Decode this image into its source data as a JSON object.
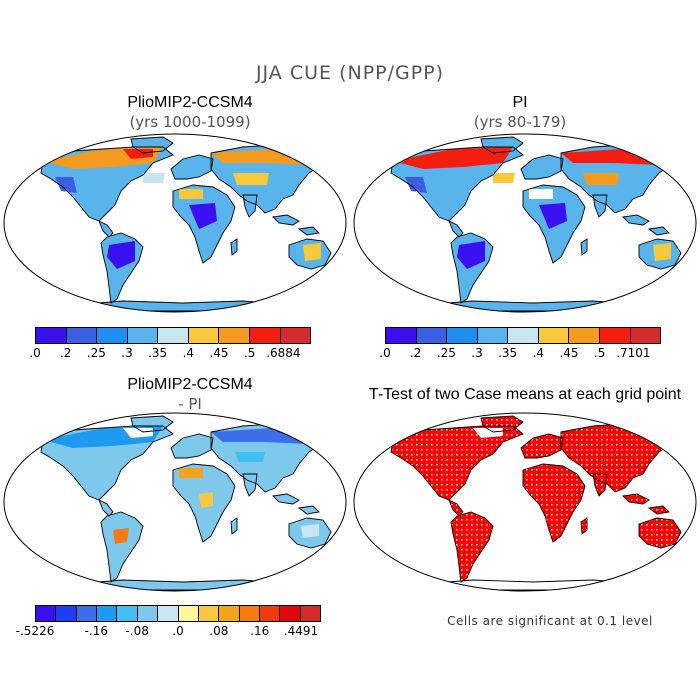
{
  "figure": {
    "title": "JJA CUE (NPP/GPP)"
  },
  "panels": [
    {
      "id": "plio",
      "title": "PlioMIP2-CCSM4",
      "subtitle": "(yrs 1000-1099)"
    },
    {
      "id": "pi",
      "title": "PI",
      "subtitle": "(yrs 80-179)"
    },
    {
      "id": "diff",
      "title": "PlioMIP2-CCSM4",
      "subtitle": "- PI"
    },
    {
      "id": "ttest",
      "title": "T-Test of two Case means at each grid point",
      "subtitle": ""
    }
  ],
  "colorbars": {
    "plio": {
      "colors": [
        "#3a10f0",
        "#3b5fe0",
        "#1e8ff0",
        "#5ab4ec",
        "#c8e6f2",
        "#f5c93a",
        "#f39b1e",
        "#f41e10",
        "#d42c2c"
      ],
      "ticks": [
        ".0",
        ".2",
        ".25",
        ".3",
        ".35",
        ".4",
        ".45",
        ".5",
        ".6884"
      ]
    },
    "pi": {
      "colors": [
        "#3a10f0",
        "#3b5fe0",
        "#1e8ff0",
        "#5ab4ec",
        "#c8e6f2",
        "#f5c93a",
        "#f39b1e",
        "#f41e10",
        "#d42c2c"
      ],
      "ticks": [
        ".0",
        ".2",
        ".25",
        ".3",
        ".35",
        ".4",
        ".45",
        ".5",
        ".7101"
      ]
    },
    "diff": {
      "colors": [
        "#3a10f0",
        "#1e3ff0",
        "#3b6ee8",
        "#1e9af0",
        "#40c0f2",
        "#7ec8ec",
        "#c8e6f2",
        "#fff59a",
        "#f8c840",
        "#f5a21e",
        "#f57a14",
        "#f23a10",
        "#e0080c",
        "#d42c2c"
      ],
      "ticks": [
        "-.5226",
        "-.16",
        "-.08",
        ".0",
        ".08",
        ".16",
        ".4491"
      ]
    }
  },
  "significance_note": "Cells are significant at 0.1 level"
}
